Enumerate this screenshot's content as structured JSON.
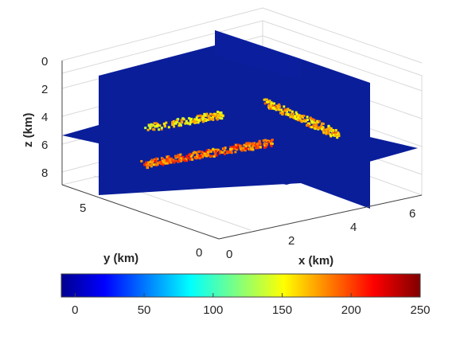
{
  "chart_data": {
    "type": "heatmap",
    "subtype": "3d-slice",
    "title": "",
    "xlabel": "x (km)",
    "ylabel": "y (km)",
    "zlabel": "z (km)",
    "xlim": [
      0,
      6.5
    ],
    "ylim": [
      0,
      6.5
    ],
    "zlim": [
      0,
      9
    ],
    "z_reversed": true,
    "x_ticks": [
      "0",
      "2",
      "4",
      "6"
    ],
    "y_ticks": [
      "0",
      "5"
    ],
    "z_ticks": [
      "0",
      "2",
      "4",
      "6",
      "8"
    ],
    "slices": {
      "x": 3.4,
      "y": 3.4,
      "z": 5.1
    },
    "background_value": 0,
    "colormap": "jet",
    "colorbar": {
      "min": -10,
      "max": 250,
      "ticks": [
        "0",
        "50",
        "100",
        "150",
        "200",
        "250"
      ]
    },
    "grid": true,
    "anomalies": [
      {
        "slice": "xz",
        "region": "upper-left",
        "range": [
          120,
          200
        ]
      },
      {
        "slice": "yz",
        "region": "upper-right",
        "range": [
          130,
          200
        ]
      },
      {
        "slice": "xy",
        "region": "center",
        "range": [
          160,
          230
        ]
      }
    ],
    "colors": {
      "background_slice": "#0a1e9a",
      "axis": "#444444"
    }
  }
}
